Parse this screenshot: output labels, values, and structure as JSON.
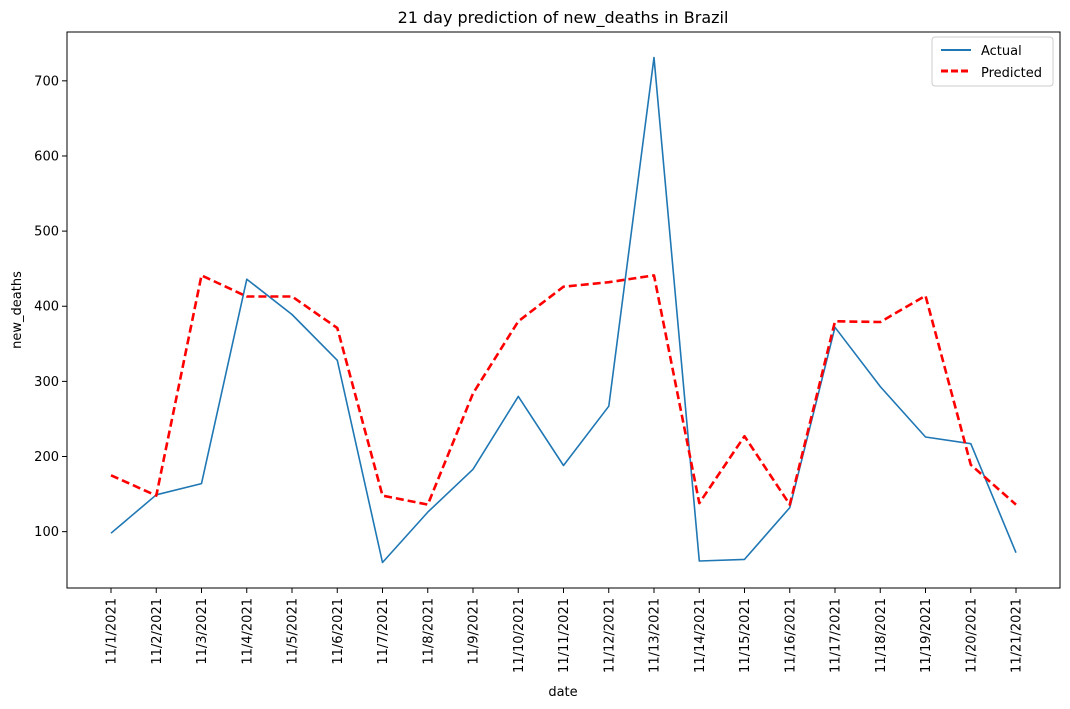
{
  "chart_data": {
    "type": "line",
    "title": "21 day prediction of new_deaths in Brazil",
    "xlabel": "date",
    "ylabel": "new_deaths",
    "categories": [
      "11/1/2021",
      "11/2/2021",
      "11/3/2021",
      "11/4/2021",
      "11/5/2021",
      "11/6/2021",
      "11/7/2021",
      "11/8/2021",
      "11/9/2021",
      "11/10/2021",
      "11/11/2021",
      "11/12/2021",
      "11/13/2021",
      "11/14/2021",
      "11/15/2021",
      "11/16/2021",
      "11/17/2021",
      "11/18/2021",
      "11/19/2021",
      "11/20/2021",
      "11/21/2021"
    ],
    "ylim": [
      25,
      765
    ],
    "yticks": [
      100,
      200,
      300,
      400,
      500,
      600,
      700
    ],
    "grid": false,
    "legend_position": "top-right",
    "series": [
      {
        "name": "Actual",
        "color": "#1f77b4",
        "style": "solid",
        "values": [
          98,
          149,
          164,
          436,
          389,
          328,
          59,
          126,
          183,
          280,
          188,
          267,
          731,
          61,
          63,
          132,
          372,
          293,
          226,
          217,
          72
        ]
      },
      {
        "name": "Predicted",
        "color": "#ff0000",
        "style": "dashed",
        "values": [
          175,
          148,
          441,
          413,
          413,
          371,
          148,
          136,
          284,
          380,
          426,
          432,
          441,
          138,
          227,
          136,
          380,
          379,
          414,
          189,
          136
        ]
      }
    ]
  }
}
